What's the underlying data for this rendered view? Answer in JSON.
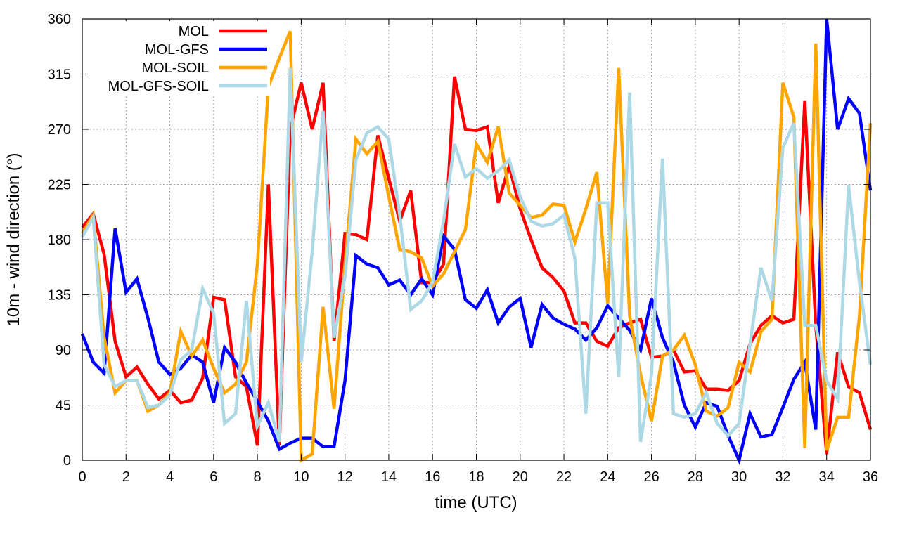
{
  "chart_data": {
    "type": "line",
    "title": "",
    "xlabel": "time (UTC)",
    "ylabel": "10m - wind direction (°)",
    "xlim": [
      0,
      36
    ],
    "ylim": [
      0,
      360
    ],
    "xticks": [
      0,
      2,
      4,
      6,
      8,
      10,
      12,
      14,
      16,
      18,
      20,
      22,
      24,
      26,
      28,
      30,
      32,
      34,
      36
    ],
    "yticks": [
      0,
      45,
      90,
      135,
      180,
      225,
      270,
      315,
      360
    ],
    "grid": true,
    "legend_position": "top-left",
    "x": [
      0,
      0.5,
      1,
      1.5,
      2,
      2.5,
      3,
      3.5,
      4,
      4.5,
      5,
      5.5,
      6,
      6.5,
      7,
      7.5,
      8,
      8.5,
      9,
      9.5,
      10,
      10.5,
      11,
      11.5,
      12,
      12.5,
      13,
      13.5,
      14,
      14.5,
      15,
      15.5,
      16,
      16.5,
      17,
      17.5,
      18,
      18.5,
      19,
      19.5,
      20,
      20.5,
      21,
      21.5,
      22,
      22.5,
      23,
      23.5,
      24,
      24.5,
      25,
      25.5,
      26,
      26.5,
      27,
      27.5,
      28,
      28.5,
      29,
      29.5,
      30,
      30.5,
      31,
      31.5,
      32,
      32.5,
      33,
      33.5,
      34,
      34.5,
      35,
      35.5,
      36
    ],
    "series": [
      {
        "name": "MOL",
        "color": "#ff0000",
        "values": [
          190,
          201,
          168,
          97,
          68,
          76,
          62,
          50,
          57,
          47,
          49,
          67,
          133,
          131,
          68,
          60,
          12,
          225,
          12,
          270,
          308,
          270,
          308,
          97,
          185,
          184,
          180,
          265,
          230,
          195,
          220,
          145,
          145,
          160,
          313,
          270,
          269,
          272,
          210,
          240,
          205,
          180,
          157,
          149,
          138,
          112,
          112,
          97,
          93,
          108,
          112,
          115,
          84,
          85,
          90,
          72,
          73,
          58,
          58,
          57,
          65,
          95,
          110,
          118,
          112,
          115,
          293,
          110,
          5,
          88,
          60,
          55,
          25
        ]
      },
      {
        "name": "MOL-GFS",
        "color": "#0000ff",
        "values": [
          103,
          80,
          71,
          189,
          137,
          148,
          116,
          80,
          70,
          75,
          86,
          80,
          47,
          92,
          80,
          63,
          48,
          32,
          9,
          14,
          18,
          18,
          11,
          11,
          65,
          167,
          160,
          157,
          143,
          147,
          135,
          148,
          135,
          183,
          172,
          131,
          124,
          139,
          112,
          125,
          132,
          92,
          127,
          116,
          111,
          107,
          98,
          108,
          126,
          116,
          106,
          90,
          132,
          100,
          80,
          45,
          27,
          47,
          44,
          20,
          0,
          38,
          19,
          21,
          43,
          66,
          80,
          25,
          360,
          270,
          295,
          283,
          220
        ]
      },
      {
        "name": "MOL-SOIL",
        "color": "#ffa500",
        "values": [
          185,
          200,
          100,
          55,
          65,
          65,
          40,
          45,
          55,
          105,
          85,
          98,
          75,
          55,
          62,
          80,
          160,
          305,
          328,
          350,
          0,
          5,
          125,
          42,
          160,
          262,
          250,
          260,
          215,
          172,
          170,
          165,
          142,
          152,
          170,
          188,
          258,
          243,
          272,
          218,
          208,
          198,
          200,
          209,
          208,
          178,
          205,
          235,
          128,
          320,
          118,
          70,
          32,
          85,
          90,
          102,
          78,
          40,
          36,
          43,
          80,
          72,
          105,
          115,
          308,
          280,
          10,
          340,
          8,
          35,
          35,
          118,
          275
        ]
      },
      {
        "name": "MOL-GFS-SOIL",
        "color": "#add8e6",
        "values": [
          182,
          198,
          78,
          60,
          65,
          65,
          43,
          45,
          53,
          82,
          90,
          140,
          120,
          30,
          38,
          130,
          28,
          47,
          15,
          320,
          80,
          170,
          285,
          100,
          150,
          245,
          267,
          272,
          262,
          200,
          123,
          130,
          145,
          195,
          258,
          231,
          238,
          230,
          236,
          245,
          215,
          195,
          191,
          193,
          200,
          165,
          38,
          210,
          210,
          68,
          300,
          15,
          70,
          246,
          38,
          35,
          38,
          55,
          30,
          20,
          30,
          95,
          157,
          130,
          255,
          275,
          110,
          110,
          65,
          50,
          224,
          145,
          78
        ]
      }
    ]
  }
}
